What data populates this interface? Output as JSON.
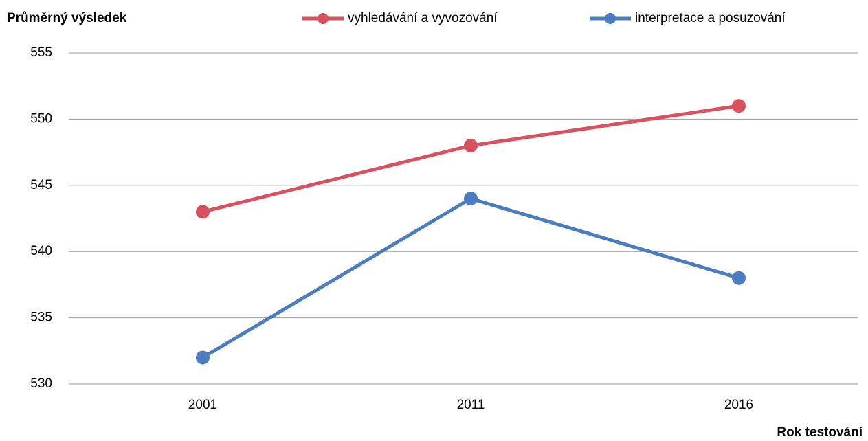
{
  "chart_data": {
    "type": "line",
    "y_label": "Průměrný výsledek",
    "x_label": "Rok testování",
    "categories": [
      "2001",
      "2011",
      "2016"
    ],
    "series": [
      {
        "name": "vyhledávání a vyvozování",
        "color": "#d9515e",
        "values": [
          543,
          548,
          551
        ]
      },
      {
        "name": "interpretace a posuzování",
        "color": "#4a7dbf",
        "values": [
          532,
          544,
          538
        ]
      }
    ],
    "ylim": [
      530,
      555
    ],
    "yticks": [
      530,
      535,
      540,
      545,
      550,
      555
    ],
    "grid": true,
    "legend": "top"
  }
}
